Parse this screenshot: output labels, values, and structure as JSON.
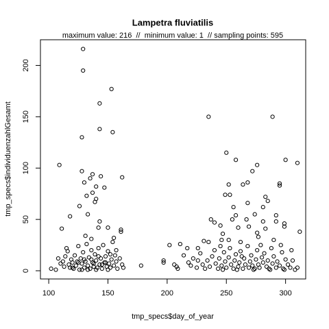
{
  "chart_data": {
    "type": "scatter",
    "title": "Lampetra fluviatilis",
    "subtitle": "maximum value: 216  //  minimum value: 1  // sampling points: 595",
    "x_label": "tmp_specs$day_of_year",
    "y_label": "tmp_specs$individuenzahlGesamt",
    "xlim": [
      93,
      317
    ],
    "ylim": [
      -8,
      225
    ],
    "xticks": [
      100,
      150,
      200,
      250,
      300
    ],
    "yticks": [
      0,
      50,
      100,
      150,
      200
    ],
    "grid": false,
    "series": [
      {
        "color": "#000000",
        "x": [
          129,
          129,
          153,
          143,
          143,
          154,
          128,
          235,
          289,
          109,
          128,
          137,
          135,
          144,
          162,
          130,
          140,
          147,
          137,
          140,
          132,
          139,
          126,
          133,
          118,
          143,
          142,
          111,
          150,
          131,
          136,
          155,
          161,
          161,
          250,
          258,
          276,
          300,
          310,
          295,
          295,
          252,
          264,
          253,
          249,
          268,
          272,
          256,
          268,
          283,
          274,
          255,
          258,
          267,
          281,
          285,
          292,
          292,
          299,
          299,
          240,
          237,
          245,
          247,
          235,
          246,
          252,
          260,
          269,
          276,
          277,
          281,
          283,
          262,
          290,
          296,
          312,
          305,
          202,
          211,
          231,
          226,
          102,
          106,
          108,
          110,
          112,
          113,
          114,
          115,
          116,
          117,
          118,
          119,
          120,
          121,
          122,
          123,
          124,
          125,
          126,
          127,
          128,
          129,
          130,
          131,
          132,
          133,
          134,
          135,
          136,
          137,
          138,
          139,
          140,
          141,
          142,
          143,
          144,
          145,
          146,
          147,
          148,
          149,
          150,
          151,
          152,
          153,
          154,
          155,
          156,
          157,
          158,
          160,
          162,
          163,
          178,
          128,
          133,
          140,
          145,
          125,
          136,
          148,
          152,
          120,
          130,
          138,
          142,
          150,
          157,
          197,
          197,
          206,
          208,
          209,
          214,
          217,
          218,
          220,
          222,
          225,
          228,
          230,
          232,
          234,
          236,
          238,
          240,
          241,
          243,
          244,
          246,
          248,
          249,
          250,
          252,
          253,
          254,
          256,
          257,
          258,
          260,
          261,
          262,
          264,
          265,
          266,
          268,
          269,
          270,
          271,
          272,
          274,
          275,
          276,
          277,
          278,
          280,
          281,
          282,
          284,
          285,
          286,
          288,
          289,
          290,
          292,
          293,
          295,
          297,
          298,
          300,
          302,
          304,
          306,
          308,
          310,
          226,
          247,
          259,
          273,
          287,
          299,
          263,
          245,
          279
        ],
        "values": [
          216,
          195,
          177,
          163,
          138,
          135,
          130,
          150,
          150,
          103,
          97,
          94,
          90,
          92,
          91,
          86,
          82,
          81,
          76,
          70,
          73,
          67,
          63,
          55,
          53,
          48,
          42,
          41,
          42,
          34,
          31,
          32,
          40,
          38,
          115,
          108,
          103,
          108,
          105,
          85,
          83,
          84,
          84,
          74,
          74,
          86,
          97,
          62,
          66,
          72,
          55,
          50,
          54,
          50,
          62,
          68,
          54,
          48,
          46,
          43,
          47,
          50,
          44,
          36,
          28,
          30,
          30,
          42,
          43,
          37,
          33,
          48,
          41,
          28,
          30,
          25,
          38,
          20,
          25,
          26,
          29,
          22,
          2,
          1,
          12,
          7,
          9,
          4,
          14,
          22,
          19,
          6,
          3,
          11,
          8,
          2,
          15,
          5,
          9,
          24,
          1,
          12,
          7,
          18,
          3,
          9,
          26,
          5,
          13,
          2,
          20,
          8,
          4,
          16,
          10,
          3,
          22,
          6,
          12,
          2,
          25,
          8,
          14,
          4,
          19,
          7,
          3,
          11,
          28,
          5,
          15,
          9,
          2,
          12,
          6,
          3,
          5,
          1,
          1,
          1,
          6,
          8,
          11,
          8,
          16,
          3,
          11,
          7,
          14,
          1,
          20,
          10,
          8,
          6,
          4,
          2,
          15,
          22,
          8,
          5,
          12,
          3,
          17,
          6,
          2,
          10,
          4,
          14,
          20,
          7,
          2,
          12,
          5,
          18,
          9,
          3,
          13,
          22,
          6,
          2,
          10,
          16,
          4,
          8,
          19,
          2,
          12,
          6,
          24,
          3,
          9,
          15,
          5,
          2,
          11,
          20,
          6,
          3,
          13,
          8,
          17,
          4,
          10,
          2,
          22,
          7,
          14,
          3,
          9,
          5,
          18,
          2,
          11,
          6,
          3,
          10,
          1,
          3,
          10,
          1,
          1,
          1,
          1,
          1,
          14,
          24,
          25
        ]
      }
    ]
  }
}
